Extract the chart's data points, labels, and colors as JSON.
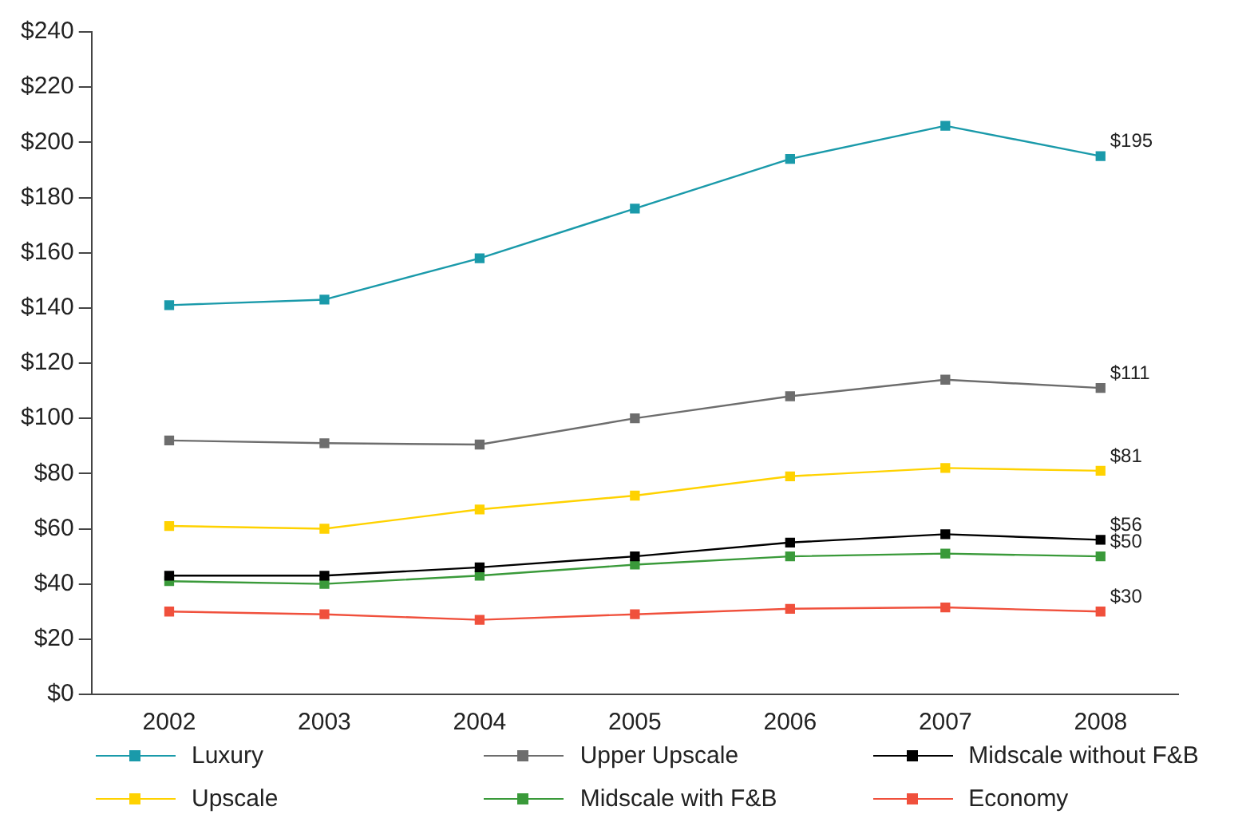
{
  "chart_data": {
    "type": "line",
    "categories": [
      "2002",
      "2003",
      "2004",
      "2005",
      "2006",
      "2007",
      "2008"
    ],
    "series": [
      {
        "name": "Luxury",
        "color": "#1a9aaa",
        "values": [
          141,
          143,
          158,
          176,
          194,
          206,
          195
        ],
        "value_labels": [
          null,
          null,
          null,
          null,
          null,
          null,
          "$195"
        ]
      },
      {
        "name": "Upper Upscale",
        "color": "#6d6d6d",
        "values": [
          92,
          91,
          90.5,
          100,
          108,
          114,
          111
        ],
        "value_labels": [
          null,
          null,
          null,
          null,
          null,
          null,
          "$111"
        ]
      },
      {
        "name": "Midscale without F&B",
        "color": "#000000",
        "values": [
          43,
          43,
          46,
          50,
          55,
          58,
          56
        ],
        "value_labels": [
          null,
          null,
          null,
          null,
          null,
          null,
          "$56"
        ]
      },
      {
        "name": "Upscale",
        "color": "#ffd200",
        "values": [
          61,
          60,
          67,
          72,
          79,
          82,
          81
        ],
        "value_labels": [
          null,
          null,
          null,
          null,
          null,
          null,
          "$81"
        ]
      },
      {
        "name": "Midscale with F&B",
        "color": "#3a9a3a",
        "values": [
          41,
          40,
          43,
          47,
          50,
          51,
          50
        ],
        "value_labels": [
          null,
          null,
          null,
          null,
          null,
          null,
          "$50"
        ]
      },
      {
        "name": "Economy",
        "color": "#f0503c",
        "values": [
          30,
          29,
          27,
          29,
          31,
          31.5,
          30
        ],
        "value_labels": [
          null,
          null,
          null,
          null,
          null,
          null,
          "$30"
        ]
      }
    ],
    "ylim": [
      0,
      240
    ],
    "yticks": [
      {
        "value": 0,
        "label": "$0"
      },
      {
        "value": 20,
        "label": "$20"
      },
      {
        "value": 40,
        "label": "$40"
      },
      {
        "value": 60,
        "label": "$60"
      },
      {
        "value": 80,
        "label": "$80"
      },
      {
        "value": 100,
        "label": "$100"
      },
      {
        "value": 120,
        "label": "$120"
      },
      {
        "value": 140,
        "label": "$140"
      },
      {
        "value": 160,
        "label": "$160"
      },
      {
        "value": 180,
        "label": "$180"
      },
      {
        "value": 200,
        "label": "$200"
      },
      {
        "value": 220,
        "label": "$220"
      },
      {
        "value": 240,
        "label": "$240"
      }
    ],
    "grid": false,
    "legend": "bottom",
    "marker": "square",
    "line_style": "solid"
  }
}
